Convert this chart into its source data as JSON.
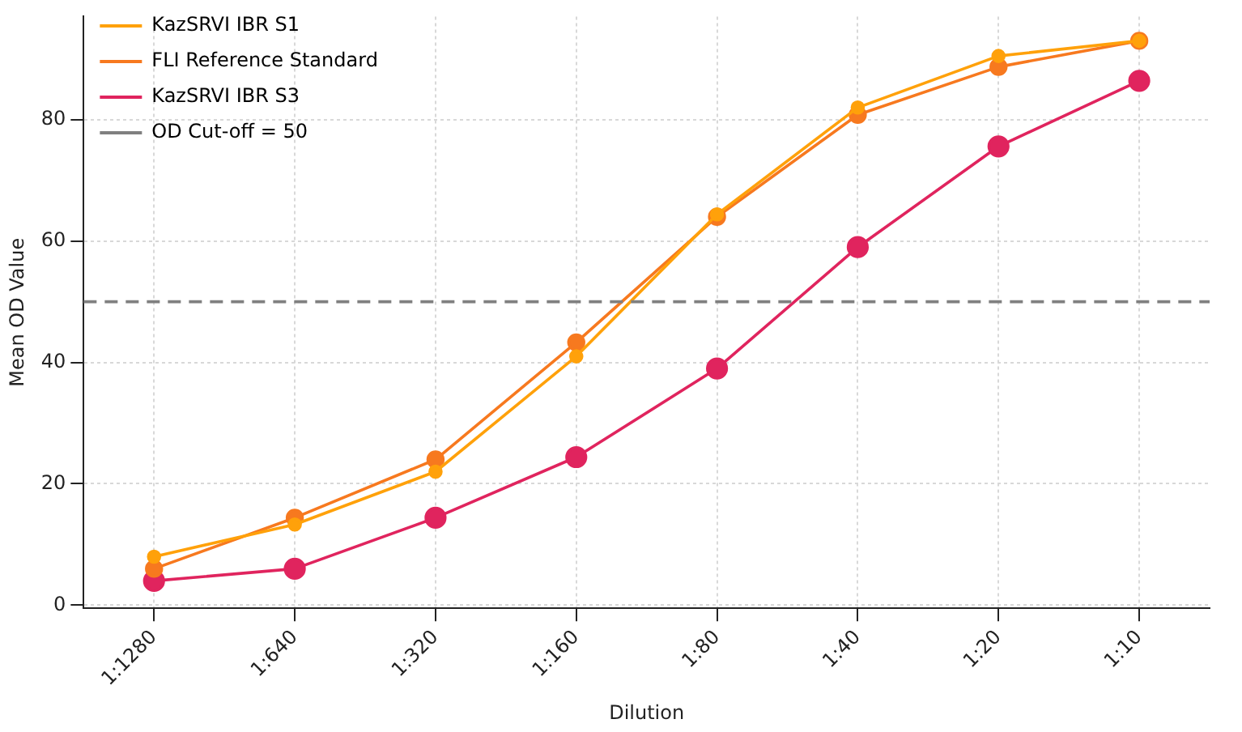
{
  "chart_data": {
    "type": "line",
    "xlabel": "Dilution",
    "ylabel": "Mean OD Value",
    "categories": [
      "1:1280",
      "1:640",
      "1:320",
      "1:160",
      "1:80",
      "1:40",
      "1:20",
      "1:10"
    ],
    "series": [
      {
        "name": "KazSRVI IBR S1",
        "color": "#ffa10a",
        "values": [
          8,
          13.3,
          22,
          41,
          64.4,
          82,
          90.5,
          93
        ]
      },
      {
        "name": "FLI Reference Standard",
        "color": "#f7791f",
        "values": [
          6,
          14.4,
          24,
          43.3,
          64,
          80.8,
          88.7,
          93
        ]
      },
      {
        "name": "KazSRVI IBR S3",
        "color": "#e0245e",
        "values": [
          4,
          6,
          14.4,
          24.4,
          39,
          59,
          75.6,
          86.4
        ]
      }
    ],
    "ref_lines": [
      {
        "axis": "y",
        "value": 50,
        "label": "OD Cut-off = 50",
        "color": "#808080",
        "line_style": "dashed"
      }
    ],
    "ylim": [
      -0.5,
      97
    ],
    "yticks": [
      0,
      20,
      40,
      60,
      80
    ],
    "grid": true,
    "legend": "top left",
    "marker": "circle",
    "line_style": "solid"
  }
}
